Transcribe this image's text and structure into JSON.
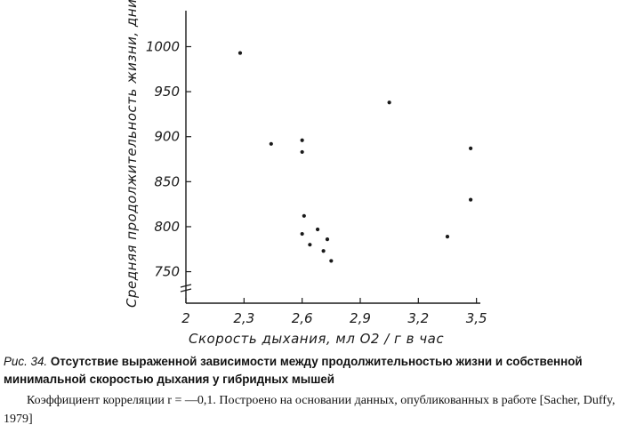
{
  "chart_data": {
    "type": "scatter",
    "xlabel": "Скорость дыхания, мл O2 / г в час",
    "ylabel": "Средняя продолжительность жизни, дни",
    "xticks": [
      "2",
      "2,3",
      "2,6",
      "2,9",
      "3,2",
      "3,5"
    ],
    "yticks": [
      "750",
      "800",
      "850",
      "900",
      "950",
      "1000"
    ],
    "xlim": [
      2.0,
      3.52
    ],
    "ylim": [
      715,
      1040
    ],
    "points": [
      {
        "x": 2.28,
        "y": 993
      },
      {
        "x": 2.44,
        "y": 892
      },
      {
        "x": 2.6,
        "y": 896
      },
      {
        "x": 2.6,
        "y": 883
      },
      {
        "x": 2.61,
        "y": 812
      },
      {
        "x": 2.6,
        "y": 792
      },
      {
        "x": 2.64,
        "y": 780
      },
      {
        "x": 2.68,
        "y": 797
      },
      {
        "x": 2.71,
        "y": 773
      },
      {
        "x": 2.73,
        "y": 786
      },
      {
        "x": 2.75,
        "y": 762
      },
      {
        "x": 3.05,
        "y": 938
      },
      {
        "x": 3.35,
        "y": 789
      },
      {
        "x": 3.47,
        "y": 887
      },
      {
        "x": 3.47,
        "y": 830
      }
    ]
  },
  "caption": {
    "label": "Рис. 34.",
    "text": "Отсутствие выраженной зависимости между продолжительностью жизни и собственной минимальной скоростью дыхания у гибридных мышей"
  },
  "note": "Коэффициент корреляции r = —0,1. Построено на основании данных, опубликованных в работе [Sacher, Duffy, 1979]"
}
